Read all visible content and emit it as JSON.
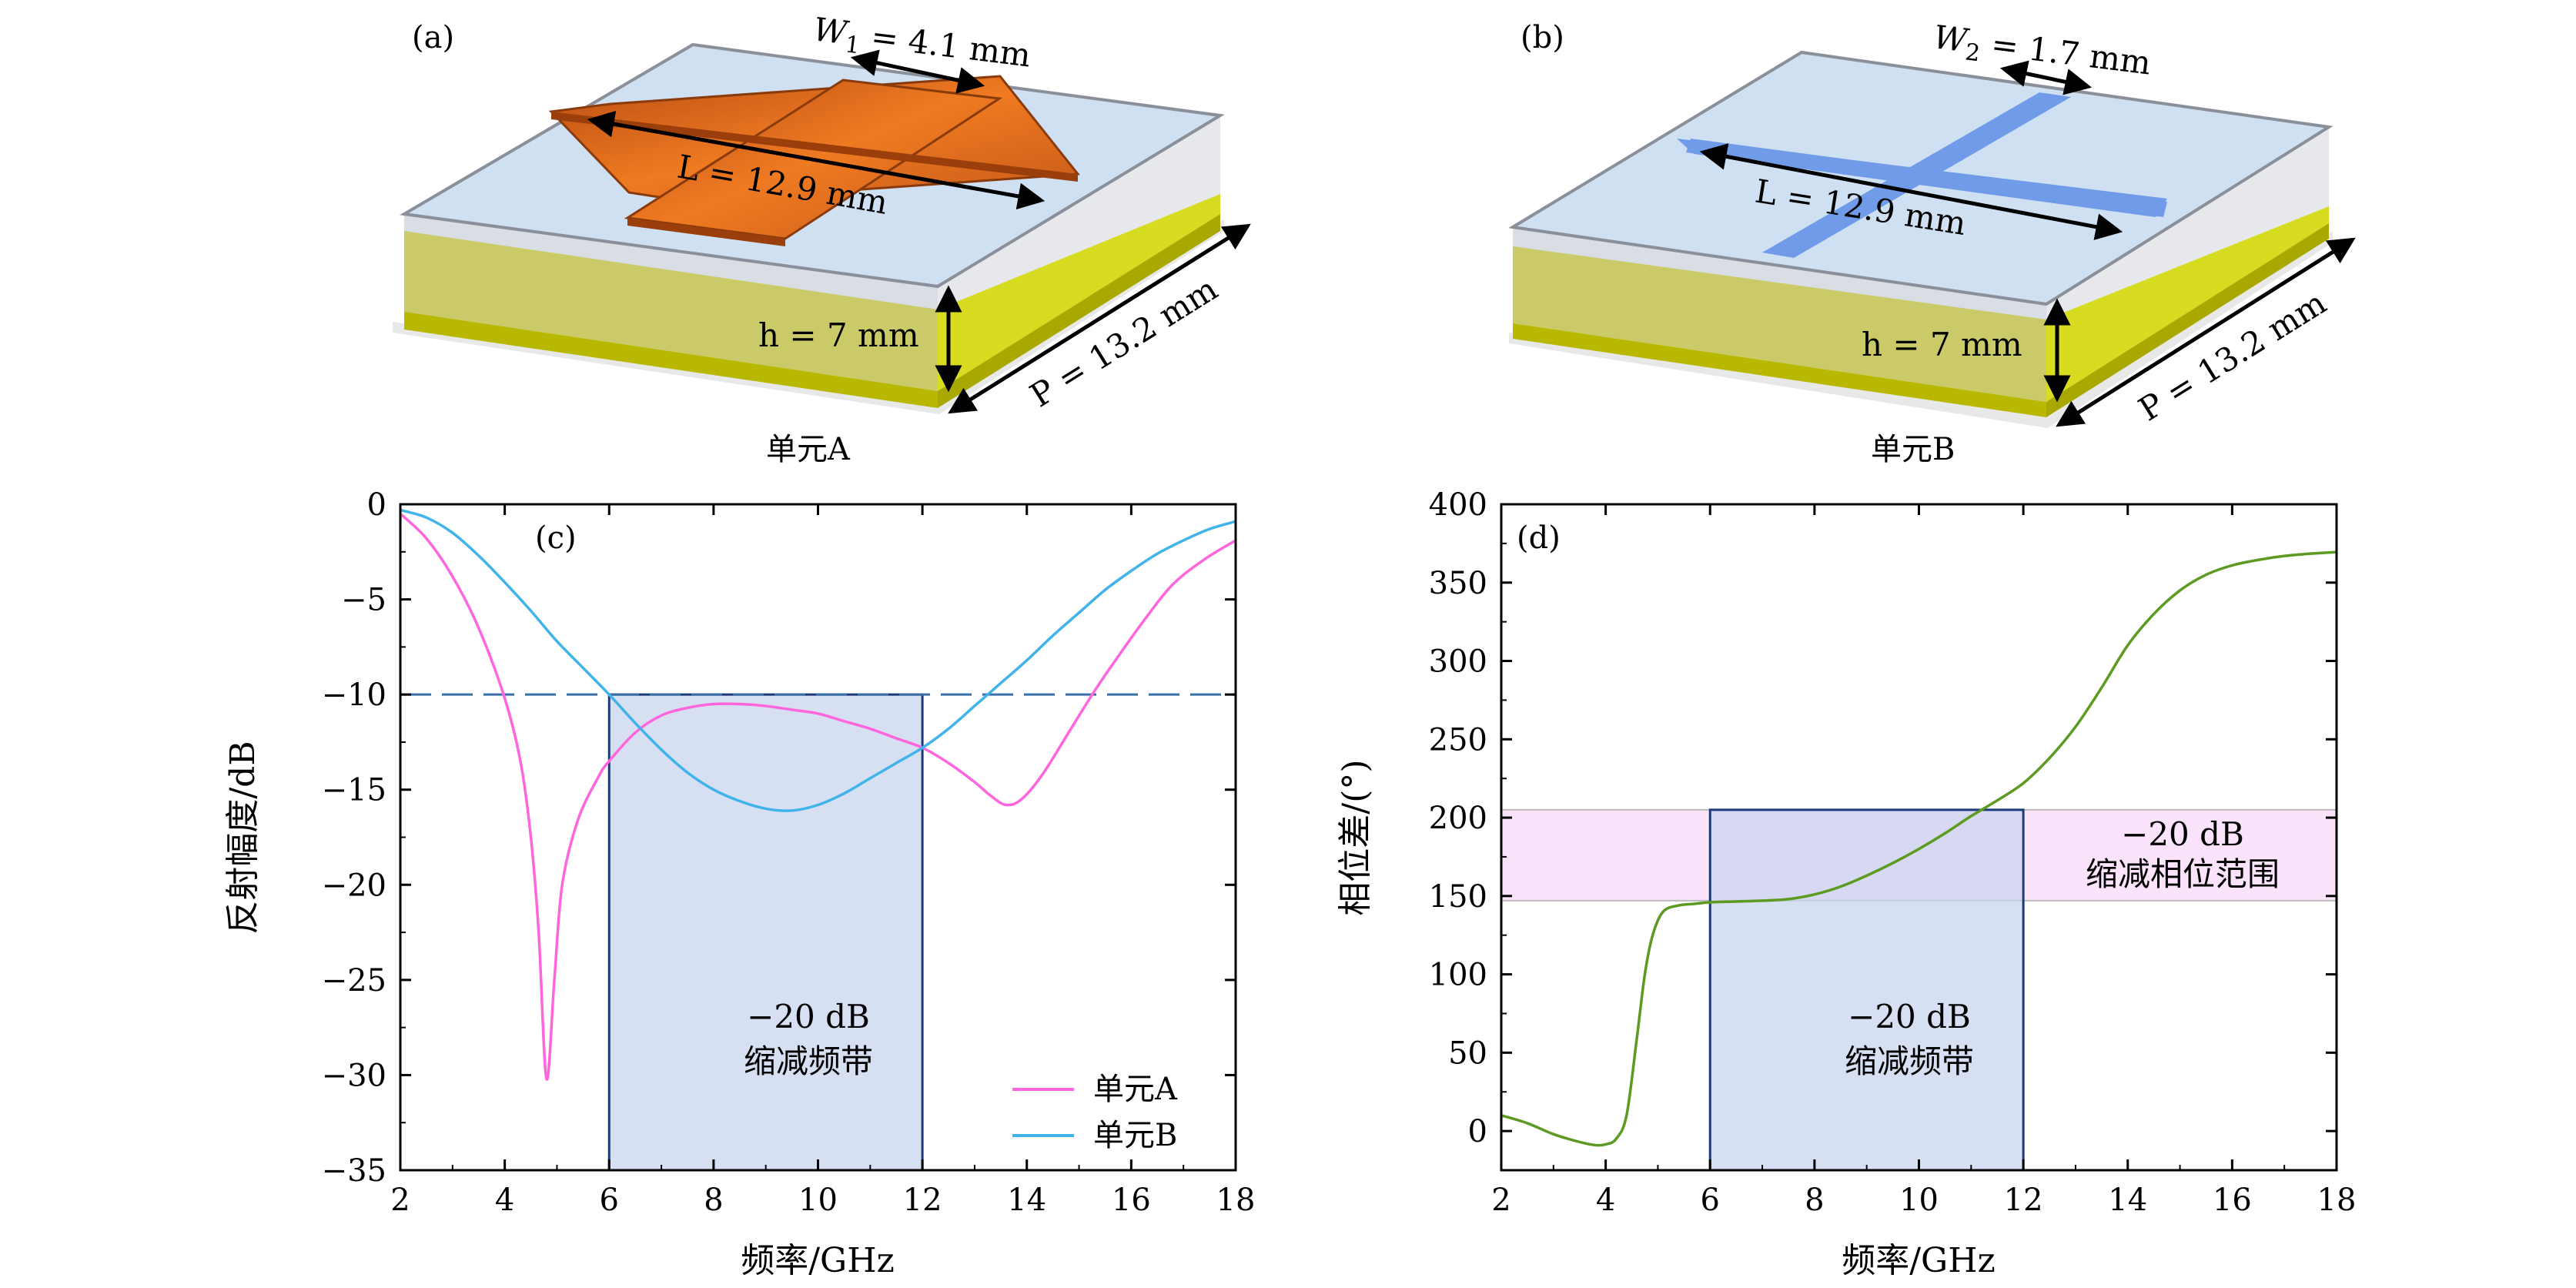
{
  "panel_a": {
    "label": "(a)",
    "w_label": "W",
    "w_sub": "1",
    "w_value": " = 4.1 mm",
    "l_label": "L = 12.9 mm",
    "h_label": "h = 7 mm",
    "p_label": "P = 13.2 mm",
    "caption": "单元A",
    "patch_color": "#e06a1c"
  },
  "panel_b": {
    "label": "(b)",
    "w_label": "W",
    "w_sub": "2",
    "w_value": " = 1.7 mm",
    "l_label": "L = 12.9 mm",
    "h_label": "h = 7 mm",
    "p_label": "P = 13.2 mm",
    "caption": "单元B",
    "patch_color": "#6f9be8"
  },
  "chart_data": [
    {
      "type": "line",
      "panel_label": "(c)",
      "xlabel": "频率/GHz",
      "ylabel": "反射幅度/dB",
      "xlim": [
        2,
        18
      ],
      "ylim": [
        -35,
        0
      ],
      "xticks": [
        2,
        4,
        6,
        8,
        10,
        12,
        14,
        16,
        18
      ],
      "yticks": [
        0,
        -5,
        -10,
        -15,
        -20,
        -25,
        -30,
        -35
      ],
      "ytick_labels": [
        "0",
        "−5",
        "−10",
        "−15",
        "−20",
        "−25",
        "−30",
        "−35"
      ],
      "reference_line": {
        "y": -10,
        "style": "dashed",
        "color": "#3a6ea8"
      },
      "band": {
        "x": [
          6,
          12
        ],
        "label_line1": "−20 dB",
        "label_line2": "缩减频带",
        "color": "#c9d6ee"
      },
      "legend_position": "bottom-right",
      "series": [
        {
          "name": "单元A",
          "color": "#ff66dd",
          "x": [
            2,
            2.5,
            3,
            3.5,
            4,
            4.3,
            4.5,
            4.65,
            4.8,
            4.95,
            5.1,
            5.4,
            5.8,
            6,
            6.5,
            7,
            7.5,
            8,
            8.5,
            9,
            9.5,
            10,
            10.5,
            11,
            11.5,
            12,
            12.5,
            13,
            13.3,
            13.6,
            13.9,
            14.3,
            14.8,
            15.3,
            15.8,
            16.3,
            16.8,
            17.4,
            18
          ],
          "y": [
            -0.5,
            -1.8,
            -3.8,
            -6.5,
            -10.2,
            -13.5,
            -17.5,
            -22.5,
            -30.2,
            -25,
            -20,
            -16.6,
            -14.3,
            -13.5,
            -12.0,
            -11.1,
            -10.7,
            -10.5,
            -10.5,
            -10.6,
            -10.8,
            -11.0,
            -11.4,
            -11.8,
            -12.3,
            -12.8,
            -13.6,
            -14.6,
            -15.3,
            -15.8,
            -15.5,
            -14.2,
            -12.0,
            -9.8,
            -7.8,
            -5.9,
            -4.2,
            -2.9,
            -1.9
          ]
        },
        {
          "name": "单元B",
          "color": "#40b4ea",
          "x": [
            2,
            2.5,
            3,
            3.5,
            4,
            4.5,
            5,
            5.5,
            6,
            6.5,
            7,
            7.5,
            8,
            8.5,
            9,
            9.5,
            10,
            10.5,
            11,
            11.5,
            12,
            12.5,
            13,
            13.5,
            14,
            14.5,
            15,
            15.5,
            16,
            16.5,
            17,
            17.5,
            18
          ],
          "y": [
            -0.3,
            -0.7,
            -1.5,
            -2.7,
            -4.1,
            -5.6,
            -7.2,
            -8.6,
            -10.0,
            -11.5,
            -12.9,
            -14.1,
            -15.0,
            -15.6,
            -16.0,
            -16.1,
            -15.8,
            -15.2,
            -14.4,
            -13.6,
            -12.8,
            -11.8,
            -10.6,
            -9.4,
            -8.2,
            -6.9,
            -5.7,
            -4.5,
            -3.5,
            -2.6,
            -1.9,
            -1.3,
            -0.9
          ]
        }
      ]
    },
    {
      "type": "line",
      "panel_label": "(d)",
      "xlabel": "频率/GHz",
      "ylabel": "相位差/(°)",
      "xlim": [
        2,
        18
      ],
      "ylim": [
        -25,
        400
      ],
      "xticks": [
        2,
        4,
        6,
        8,
        10,
        12,
        14,
        16,
        18
      ],
      "yticks": [
        0,
        50,
        100,
        150,
        200,
        250,
        300,
        350,
        400
      ],
      "ytick_labels": [
        "0",
        "50",
        "100",
        "150",
        "200",
        "250",
        "300",
        "350",
        "400"
      ],
      "band": {
        "x": [
          6,
          12
        ],
        "y_top": 205,
        "label_line1": "−20 dB",
        "label_line2": "缩减频带",
        "color": "#c9d6ee"
      },
      "phase_range": {
        "y": [
          147,
          205
        ],
        "label_line1": "−20 dB",
        "label_line2": "缩减相位范围",
        "color": "#fbe3fb"
      },
      "series": [
        {
          "name": "",
          "color": "#5c9a22",
          "x": [
            2,
            2.5,
            3,
            3.5,
            3.8,
            4,
            4.2,
            4.4,
            4.6,
            4.75,
            4.9,
            5.1,
            5.4,
            5.7,
            6,
            6.5,
            7,
            7.5,
            8,
            8.5,
            9,
            9.5,
            10,
            10.5,
            11,
            11.5,
            12,
            12.5,
            13,
            13.5,
            14,
            14.5,
            15,
            15.5,
            16,
            16.5,
            17,
            17.5,
            18
          ],
          "y": [
            10,
            5,
            -2,
            -7,
            -9,
            -8.5,
            -5,
            10,
            60,
            100,
            125,
            140,
            144,
            145,
            146,
            146.5,
            147,
            148,
            151,
            156,
            163,
            171,
            180,
            190,
            201,
            211,
            222,
            238,
            258,
            283,
            310,
            330,
            345,
            355,
            361,
            364.5,
            367,
            368.5,
            369.5
          ]
        }
      ]
    }
  ]
}
